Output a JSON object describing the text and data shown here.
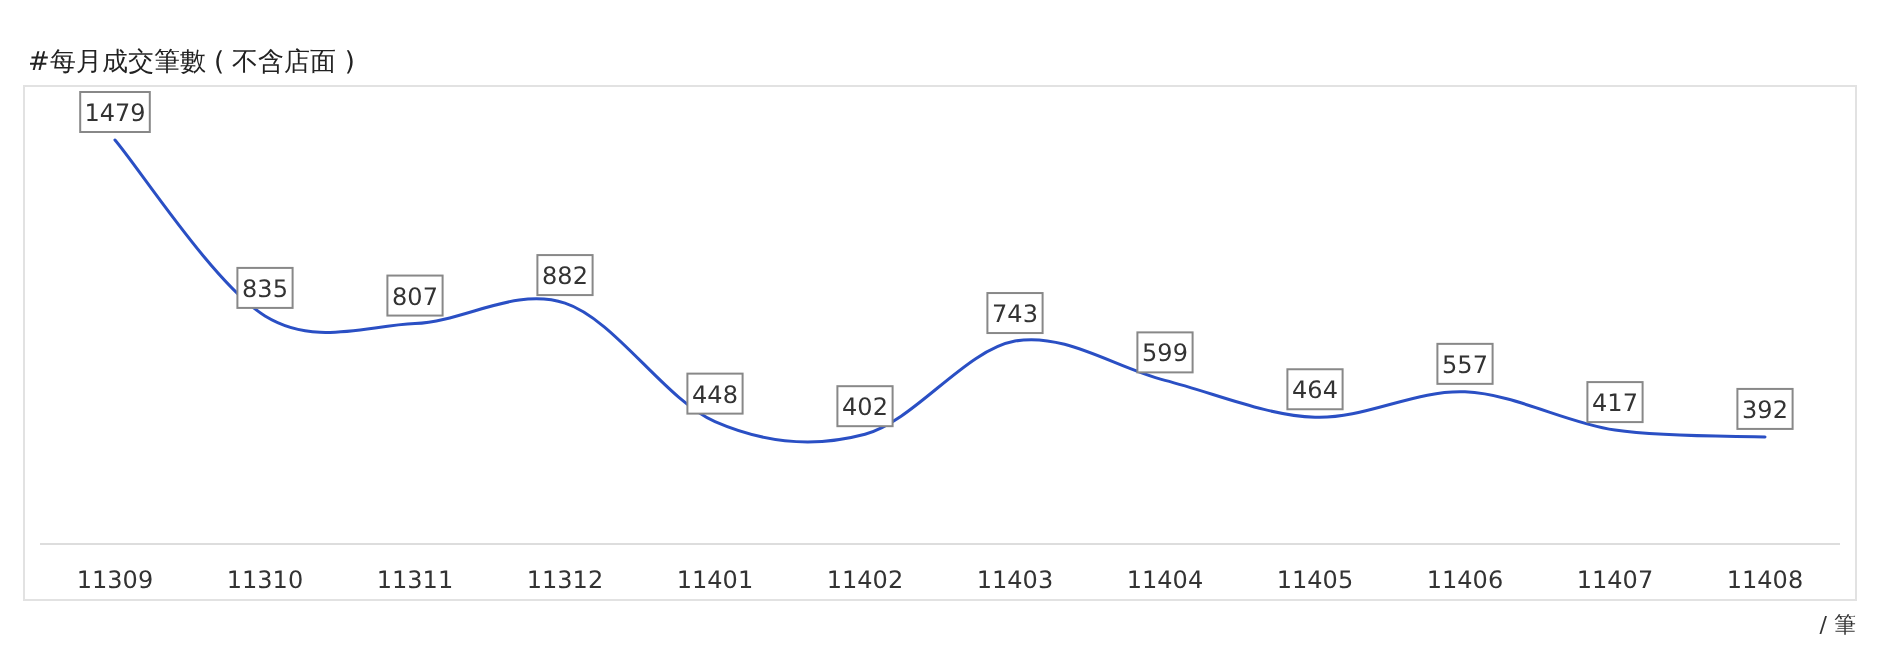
{
  "chart_data": {
    "type": "line",
    "title": "#每月成交筆數 ( 不含店面 )",
    "categories": [
      "11309",
      "11310",
      "11311",
      "11312",
      "11401",
      "11402",
      "11403",
      "11404",
      "11405",
      "11406",
      "11407",
      "11408"
    ],
    "values": [
      1479,
      835,
      807,
      882,
      448,
      402,
      743,
      599,
      464,
      557,
      417,
      392
    ],
    "color": "#2a4fc4",
    "data_labels": true,
    "annotations": [
      "/ 筆"
    ]
  }
}
